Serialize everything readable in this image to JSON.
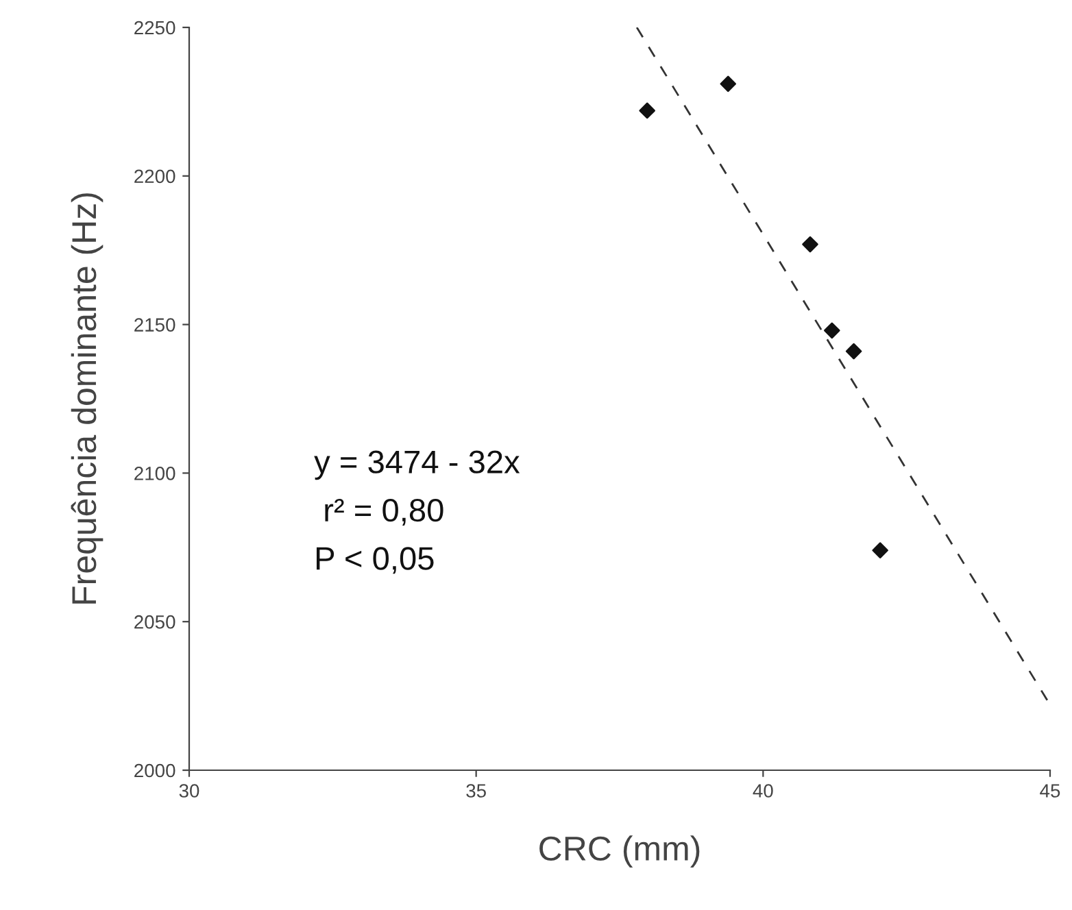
{
  "chart_data": {
    "type": "scatter",
    "xlabel": "CRC (mm)",
    "ylabel": "Frequência dominante (Hz)",
    "xlim": [
      30,
      45
    ],
    "xticks": [
      30,
      35,
      40,
      45
    ],
    "ylim": [
      2000,
      2250
    ],
    "yticks": [
      2000,
      2050,
      2100,
      2150,
      2200,
      2250
    ],
    "grid": false,
    "legend": false,
    "marker": "diamond",
    "series": [
      {
        "color": "#111111",
        "x": [
          37.98,
          39.39,
          40.82,
          41.2,
          41.58,
          42.04
        ],
        "values": [
          2222,
          2231,
          2177,
          2148,
          2141,
          2074
        ]
      },
      {
        "type": "line",
        "color": "#333333",
        "line_style": "dashed",
        "marker": "none",
        "x": [
          37.8,
          45
        ],
        "values": [
          2250,
          2022
        ]
      }
    ],
    "annotations": [
      "y = 3474 - 32x",
      " r² = 0,80",
      "P < 0,05"
    ]
  }
}
